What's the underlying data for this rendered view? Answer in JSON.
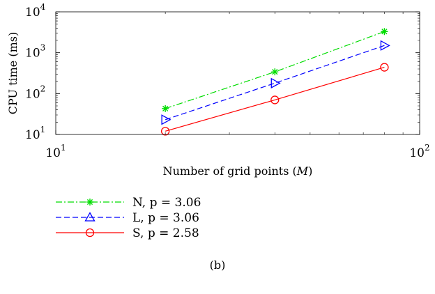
{
  "chart_data": {
    "type": "line",
    "xscale": "log",
    "yscale": "log",
    "xlim": [
      10,
      100
    ],
    "ylim": [
      10,
      10000
    ],
    "xlabel": "Number of grid points (M)",
    "xlabel_parts": {
      "main": "Number of grid points (",
      "var": "M",
      "close": ")"
    },
    "ylabel": "CPU time (ms)",
    "x_ticks": [
      {
        "base": "10",
        "exp": "1"
      },
      {
        "base": "10",
        "exp": "2"
      }
    ],
    "y_ticks": [
      {
        "base": "10",
        "exp": "1"
      },
      {
        "base": "10",
        "exp": "2"
      },
      {
        "base": "10",
        "exp": "3"
      },
      {
        "base": "10",
        "exp": "4"
      }
    ],
    "grid": false,
    "legend_position": "below",
    "series": [
      {
        "name": "N, p = 3.06",
        "color": "#00dd00",
        "dash": "dash-dot",
        "marker": "asterisk",
        "x": [
          20,
          40,
          80
        ],
        "y": [
          43,
          340,
          3300
        ]
      },
      {
        "name": "L, p = 3.06",
        "color": "#0000ff",
        "dash": "dashed",
        "marker": "triangle",
        "x": [
          20,
          40,
          80
        ],
        "y": [
          23,
          180,
          1500
        ]
      },
      {
        "name": "S, p = 2.58",
        "color": "#ff0000",
        "dash": "solid",
        "marker": "circle",
        "x": [
          20,
          40,
          80
        ],
        "y": [
          12,
          70,
          440
        ]
      }
    ],
    "caption": "(b)"
  }
}
